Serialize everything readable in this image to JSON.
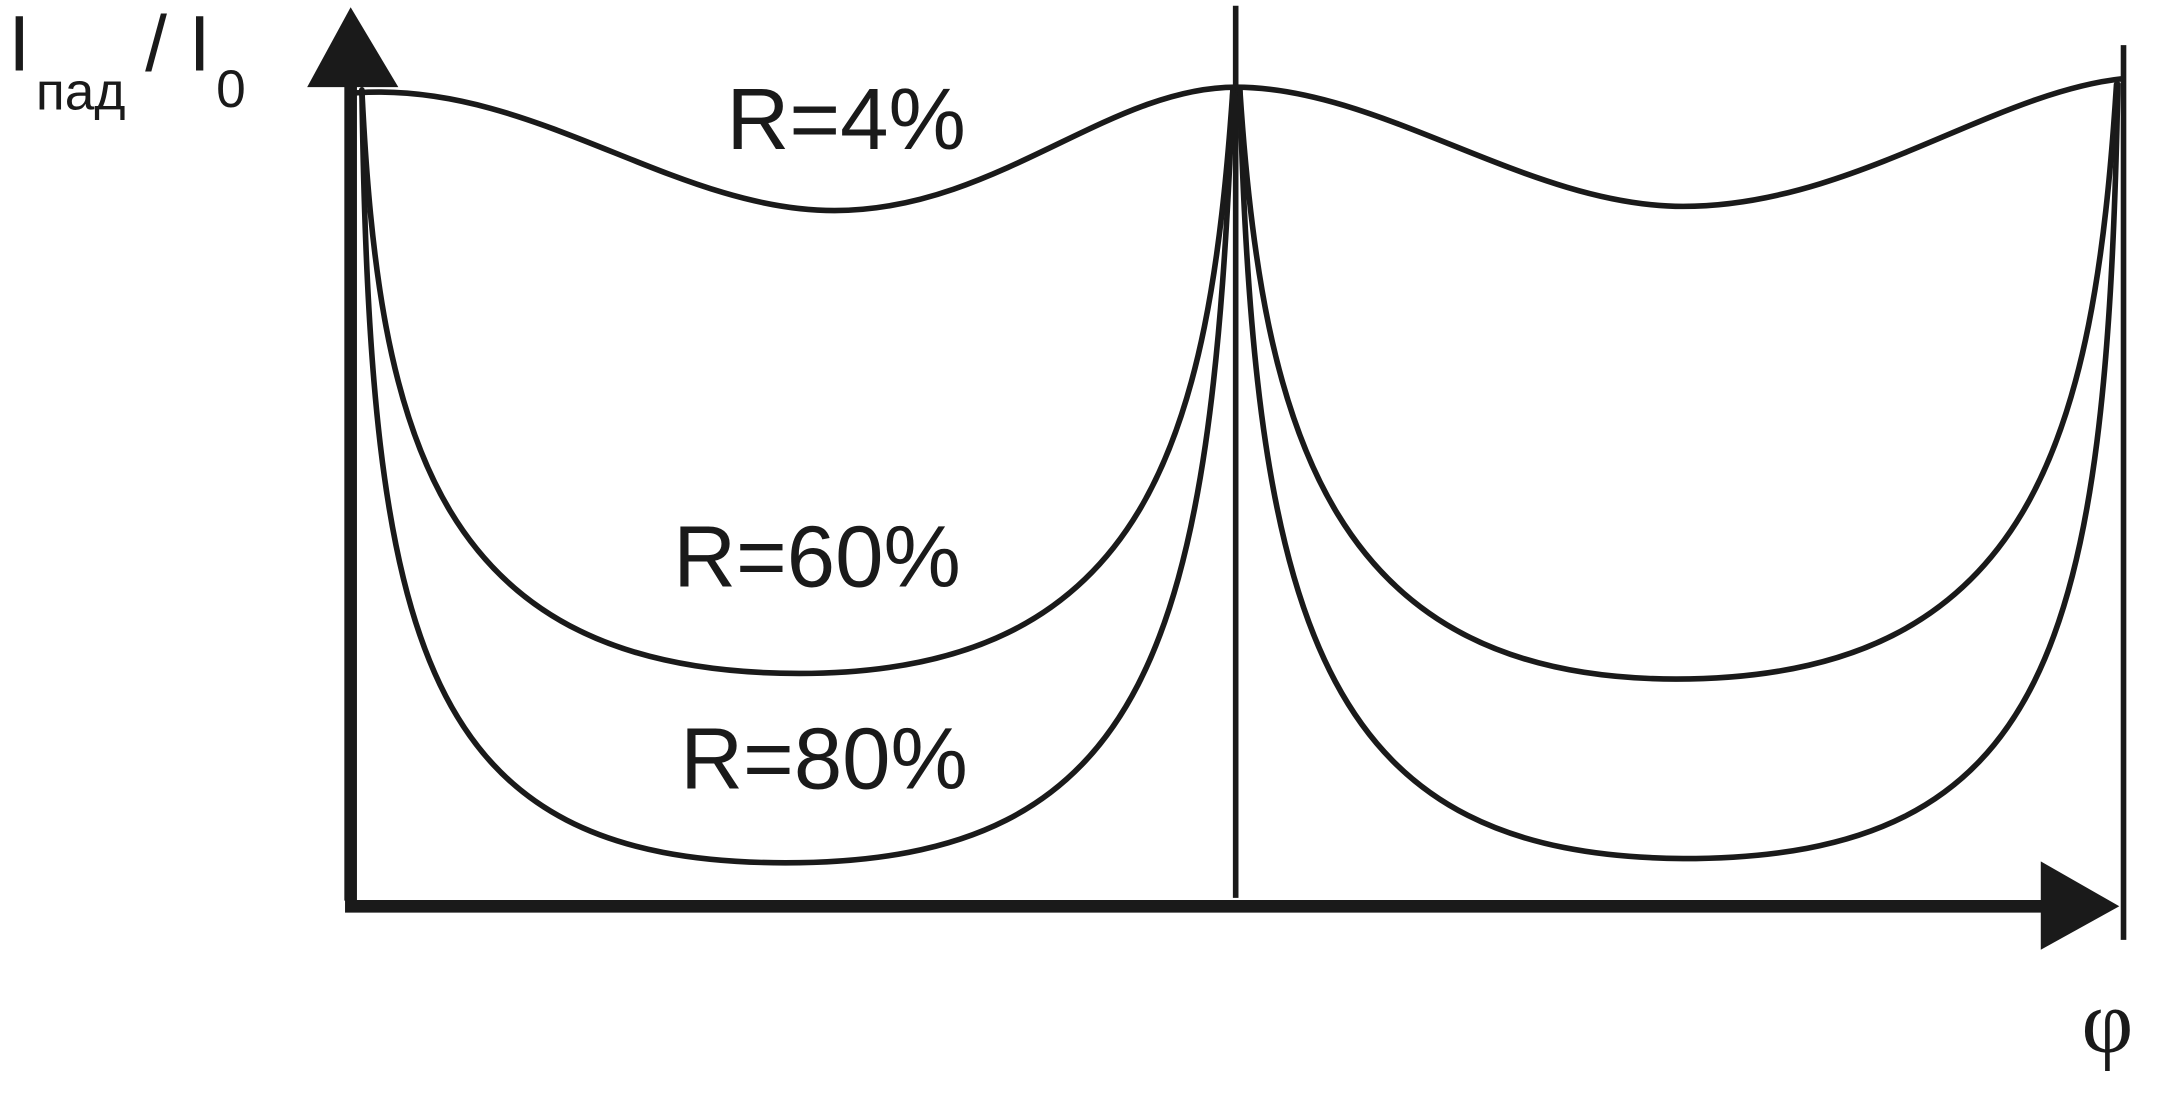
{
  "y_axis_label": {
    "symbol": "I",
    "subscript": "пад",
    "separator": "/ I",
    "separator_subscript": "0"
  },
  "x_axis_label": "φ",
  "curves": [
    {
      "label": "R=4%"
    },
    {
      "label": "R=60%"
    },
    {
      "label": "R=80%"
    }
  ]
}
